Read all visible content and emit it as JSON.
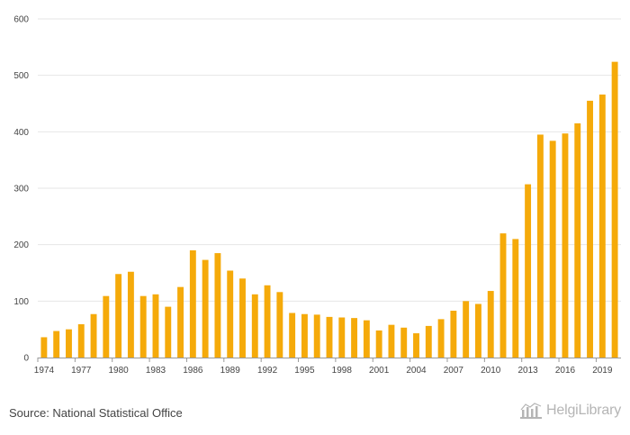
{
  "chart_data": {
    "type": "bar",
    "title": "",
    "xlabel": "",
    "ylabel": "",
    "ylim": [
      0,
      600
    ],
    "yticks": [
      0,
      100,
      200,
      300,
      400,
      500,
      600
    ],
    "categories": [
      1974,
      1975,
      1976,
      1977,
      1978,
      1979,
      1980,
      1981,
      1982,
      1983,
      1984,
      1985,
      1986,
      1987,
      1988,
      1989,
      1990,
      1991,
      1992,
      1993,
      1994,
      1995,
      1996,
      1997,
      1998,
      1999,
      2000,
      2001,
      2002,
      2003,
      2004,
      2005,
      2006,
      2007,
      2008,
      2009,
      2010,
      2011,
      2012,
      2013,
      2014,
      2015,
      2016,
      2017,
      2018,
      2019,
      2020
    ],
    "xtick_labels": [
      "1974",
      "1977",
      "1980",
      "1983",
      "1986",
      "1989",
      "1992",
      "1995",
      "1998",
      "2001",
      "2004",
      "2007",
      "2010",
      "2013",
      "2016",
      "2019"
    ],
    "values": [
      36,
      47,
      50,
      59,
      77,
      109,
      148,
      152,
      109,
      112,
      90,
      125,
      190,
      173,
      185,
      154,
      140,
      112,
      128,
      116,
      79,
      77,
      76,
      72,
      71,
      70,
      66,
      48,
      58,
      53,
      43,
      56,
      68,
      83,
      100,
      95,
      118,
      220,
      210,
      307,
      395,
      384,
      397,
      415,
      455,
      466,
      524
    ],
    "grid": true,
    "colors": {
      "bar": "#f5aa0a",
      "grid": "#e6e6e6",
      "axis": "#999999"
    }
  },
  "footer": {
    "source": "Source: National Statistical Office",
    "brand": "HelgiLibrary",
    "brand_icon": "library-building-icon"
  }
}
